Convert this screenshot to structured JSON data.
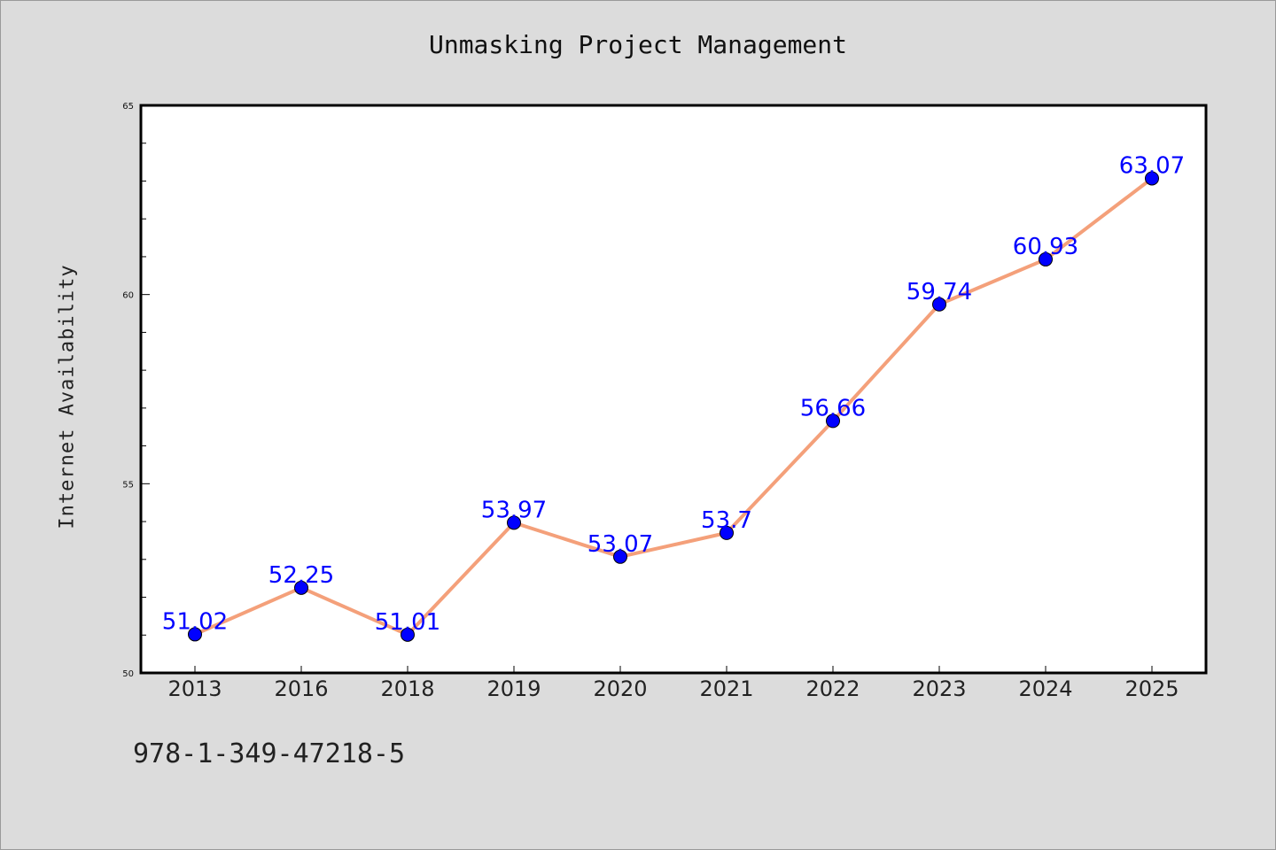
{
  "footer": {
    "code": "978-1-349-47218-5"
  },
  "chart_data": {
    "type": "line",
    "title": "Unmasking Project Management",
    "xlabel": "",
    "ylabel": "Internet Availability",
    "categories": [
      "2013",
      "2016",
      "2018",
      "2019",
      "2020",
      "2021",
      "2022",
      "2023",
      "2024",
      "2025"
    ],
    "values": [
      51.02,
      52.25,
      51.01,
      53.97,
      53.07,
      53.7,
      56.66,
      59.74,
      60.93,
      63.07
    ],
    "data_labels": [
      "51.02",
      "52.25",
      "51.01",
      "53.97",
      "53.07",
      "53.7",
      "56.66",
      "59.74",
      "60.93",
      "63.07"
    ],
    "ylim": [
      50,
      65
    ],
    "yticks": [
      "50",
      "55",
      "60",
      "65"
    ],
    "grid": false,
    "colors": {
      "line": "#f4a07a",
      "marker": "#0000ff",
      "label": "#0000ff"
    }
  }
}
